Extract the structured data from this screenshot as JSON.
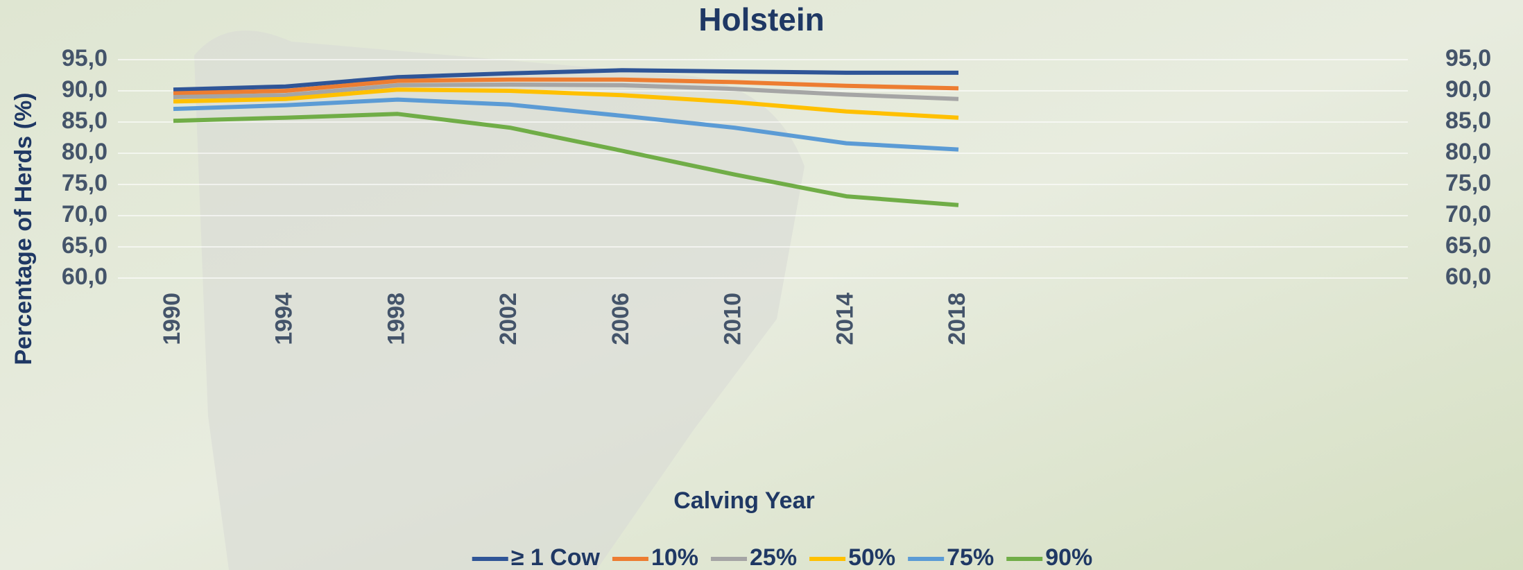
{
  "chart_data": {
    "type": "line",
    "title": "Holstein",
    "x_label": "Calving Year",
    "y_label": "Percentage of Herds (%)",
    "categories": [
      "1990",
      "1994",
      "1998",
      "2002",
      "2006",
      "2010",
      "2014",
      "2018"
    ],
    "series": [
      {
        "name": "≥ 1 Cow",
        "color": "#2f5597",
        "values": [
          90.2,
          90.7,
          92.2,
          92.8,
          93.3,
          93.1,
          92.9,
          92.9
        ]
      },
      {
        "name": "10%",
        "color": "#ed7d31",
        "values": [
          89.6,
          90.0,
          91.6,
          91.8,
          91.8,
          91.4,
          90.8,
          90.4
        ]
      },
      {
        "name": "25%",
        "color": "#a5a5a5",
        "values": [
          89.0,
          89.3,
          90.9,
          91.0,
          90.9,
          90.3,
          89.4,
          88.7
        ]
      },
      {
        "name": "50%",
        "color": "#ffc000",
        "values": [
          88.3,
          88.7,
          90.2,
          90.0,
          89.3,
          88.2,
          86.7,
          85.7
        ]
      },
      {
        "name": "75%",
        "color": "#5b9bd5",
        "values": [
          87.1,
          87.7,
          88.6,
          87.8,
          86.0,
          84.1,
          81.6,
          80.6
        ]
      },
      {
        "name": "90%",
        "color": "#70ad47",
        "values": [
          85.2,
          85.7,
          86.3,
          84.1,
          80.4,
          76.6,
          73.1,
          71.7
        ]
      }
    ],
    "ylim": [
      60,
      95
    ],
    "yticks": [
      {
        "value": 60,
        "label": "60,0"
      },
      {
        "value": 65,
        "label": "65,0"
      },
      {
        "value": 70,
        "label": "70,0"
      },
      {
        "value": 75,
        "label": "75,0"
      },
      {
        "value": 80,
        "label": "80,0"
      },
      {
        "value": 85,
        "label": "85,0"
      },
      {
        "value": 90,
        "label": "90,0"
      },
      {
        "value": 95,
        "label": "95,0"
      }
    ],
    "y2lim": [
      60,
      95
    ],
    "y2ticks": [
      {
        "value": 60,
        "label": "60,0"
      },
      {
        "value": 65,
        "label": "65,0"
      },
      {
        "value": 70,
        "label": "70,0"
      },
      {
        "value": 75,
        "label": "75,0"
      },
      {
        "value": 80,
        "label": "80,0"
      },
      {
        "value": 85,
        "label": "85,0"
      },
      {
        "value": 90,
        "label": "90,0"
      },
      {
        "value": 95,
        "label": "95,0"
      }
    ],
    "grid": true,
    "legend": "bottom"
  }
}
